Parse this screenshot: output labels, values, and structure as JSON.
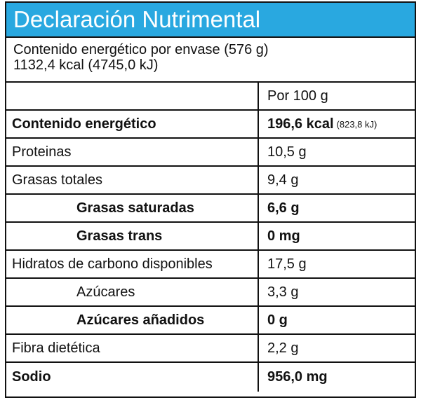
{
  "header": {
    "title": "Declaración Nutrimental"
  },
  "package": {
    "lines": [
      "Contenido energético por envase (576 g)",
      "1132,4 kcal (4745,0 kJ)"
    ]
  },
  "table": {
    "column_header": "Por 100 g",
    "rows": [
      {
        "label": "Contenido energético",
        "value": "196,6 kcal",
        "value_note": "(823,8 kJ)",
        "bold": true,
        "level": 0
      },
      {
        "label": "Proteinas",
        "value": "10,5 g",
        "bold": false,
        "level": 0
      },
      {
        "label": "Grasas totales",
        "value": "9,4 g",
        "bold": false,
        "level": 0
      },
      {
        "label": "Grasas saturadas",
        "value": "6,6 g",
        "bold": true,
        "level": 1
      },
      {
        "label": "Grasas trans",
        "value": "0 mg",
        "bold": true,
        "level": 1
      },
      {
        "label": "Hidratos de carbono disponibles",
        "value": "17,5 g",
        "bold": false,
        "level": 0
      },
      {
        "label": "Azúcares",
        "value": "3,3 g",
        "bold": false,
        "level": 1
      },
      {
        "label": "Azúcares añadidos",
        "value": "0 g",
        "bold": true,
        "level": 1
      },
      {
        "label": "Fibra dietética",
        "value": "2,2 g",
        "bold": false,
        "level": 0
      },
      {
        "label": "Sodio",
        "value": "956,0 mg",
        "bold": true,
        "level": 0
      }
    ]
  }
}
